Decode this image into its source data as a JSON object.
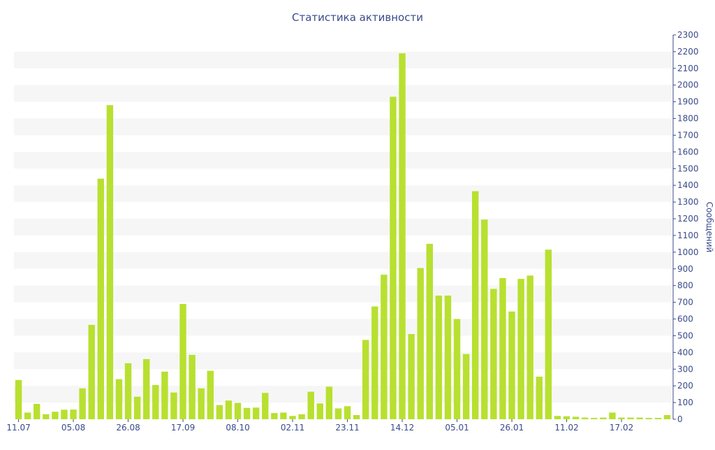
{
  "chart_data": {
    "type": "bar",
    "title": "Статистика активности",
    "xlabel": "",
    "ylabel": "Сообщений",
    "y_axis_position": "right",
    "ylim": [
      0,
      2300
    ],
    "y_ticks": [
      0,
      100,
      200,
      300,
      400,
      500,
      600,
      700,
      800,
      900,
      1000,
      1100,
      1200,
      1300,
      1400,
      1500,
      1600,
      1700,
      1800,
      1900,
      2000,
      2100,
      2200,
      2300
    ],
    "grid": "alternating horizontal bands",
    "colors": {
      "bar": "#b8e030",
      "stripe": "#f6f6f6",
      "text": "#3a4a8a"
    },
    "x_tick_labels": [
      {
        "label": "11.07",
        "index": 0
      },
      {
        "label": "05.08",
        "index": 6
      },
      {
        "label": "26.08",
        "index": 12
      },
      {
        "label": "17.09",
        "index": 18
      },
      {
        "label": "08.10",
        "index": 24
      },
      {
        "label": "02.11",
        "index": 30
      },
      {
        "label": "23.11",
        "index": 36
      },
      {
        "label": "14.12",
        "index": 42
      },
      {
        "label": "05.01",
        "index": 48
      },
      {
        "label": "26.01",
        "index": 54
      },
      {
        "label": "11.02",
        "index": 60
      },
      {
        "label": "17.02",
        "index": 66
      }
    ],
    "values": [
      235,
      40,
      92,
      30,
      45,
      57,
      58,
      185,
      565,
      1440,
      1880,
      240,
      335,
      135,
      360,
      205,
      285,
      160,
      690,
      385,
      185,
      290,
      85,
      112,
      98,
      68,
      70,
      158,
      37,
      40,
      20,
      30,
      165,
      95,
      195,
      65,
      78,
      25,
      475,
      675,
      865,
      1930,
      2190,
      510,
      905,
      1050,
      740,
      740,
      600,
      390,
      1365,
      1195,
      780,
      845,
      645,
      840,
      860,
      255,
      1015,
      20,
      18,
      15,
      10,
      8,
      10,
      40,
      10,
      10,
      10,
      8,
      8,
      25
    ]
  }
}
